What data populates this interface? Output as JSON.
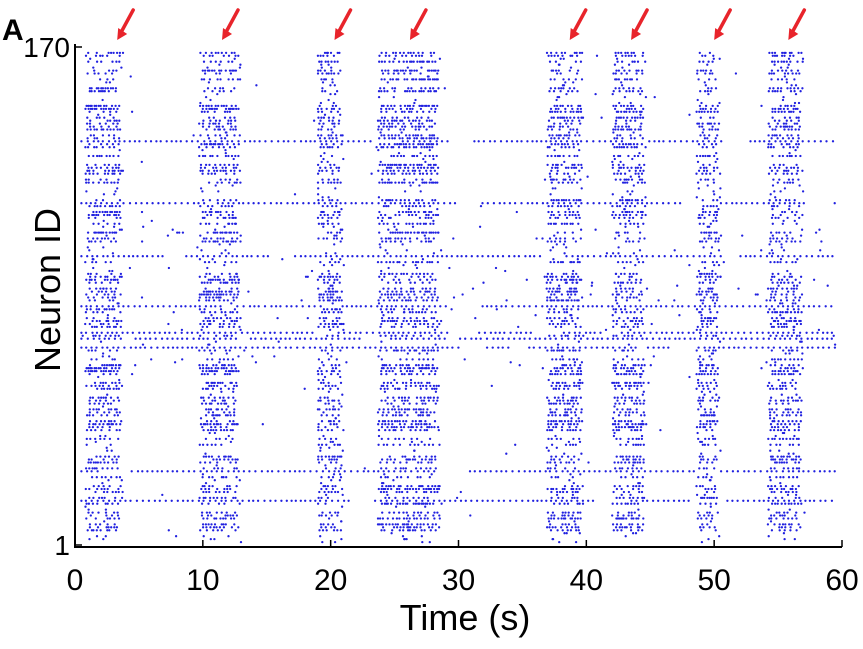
{
  "panel_label": "A",
  "chart_data": {
    "type": "scatter",
    "chart_kind": "raster",
    "title": "",
    "xlabel": "Time (s)",
    "ylabel": "Neuron ID",
    "xlim": [
      0,
      60
    ],
    "ylim": [
      1,
      170
    ],
    "x_ticks": [
      0,
      10,
      20,
      30,
      40,
      50,
      60
    ],
    "x_tick_labels": [
      "0",
      "10",
      "20",
      "30",
      "40",
      "50",
      "60"
    ],
    "y_ticks": [
      1,
      170
    ],
    "y_tick_labels": [
      "1",
      "170"
    ],
    "grid": false,
    "legend": "none",
    "marker_color": "#2020e0",
    "arrow_color": "#e8242b",
    "burst_intervals": [
      {
        "start": 0.8,
        "end": 3.8
      },
      {
        "start": 9.7,
        "end": 13.0
      },
      {
        "start": 19.0,
        "end": 21.0
      },
      {
        "start": 23.7,
        "end": 28.6
      },
      {
        "start": 36.9,
        "end": 39.8
      },
      {
        "start": 42.0,
        "end": 44.7
      },
      {
        "start": 48.6,
        "end": 50.5
      },
      {
        "start": 54.2,
        "end": 57.0
      }
    ],
    "annotations": [
      {
        "type": "arrow",
        "x": 3.3
      },
      {
        "type": "arrow",
        "x": 11.5
      },
      {
        "type": "arrow",
        "x": 20.3
      },
      {
        "type": "arrow",
        "x": 26.2
      },
      {
        "type": "arrow",
        "x": 38.7
      },
      {
        "type": "arrow",
        "x": 43.5
      },
      {
        "type": "arrow",
        "x": 50.0
      },
      {
        "type": "arrow",
        "x": 55.8
      }
    ],
    "tonic_neurons": [
      138,
      117,
      99,
      82,
      73,
      71,
      68,
      26,
      16
    ]
  }
}
